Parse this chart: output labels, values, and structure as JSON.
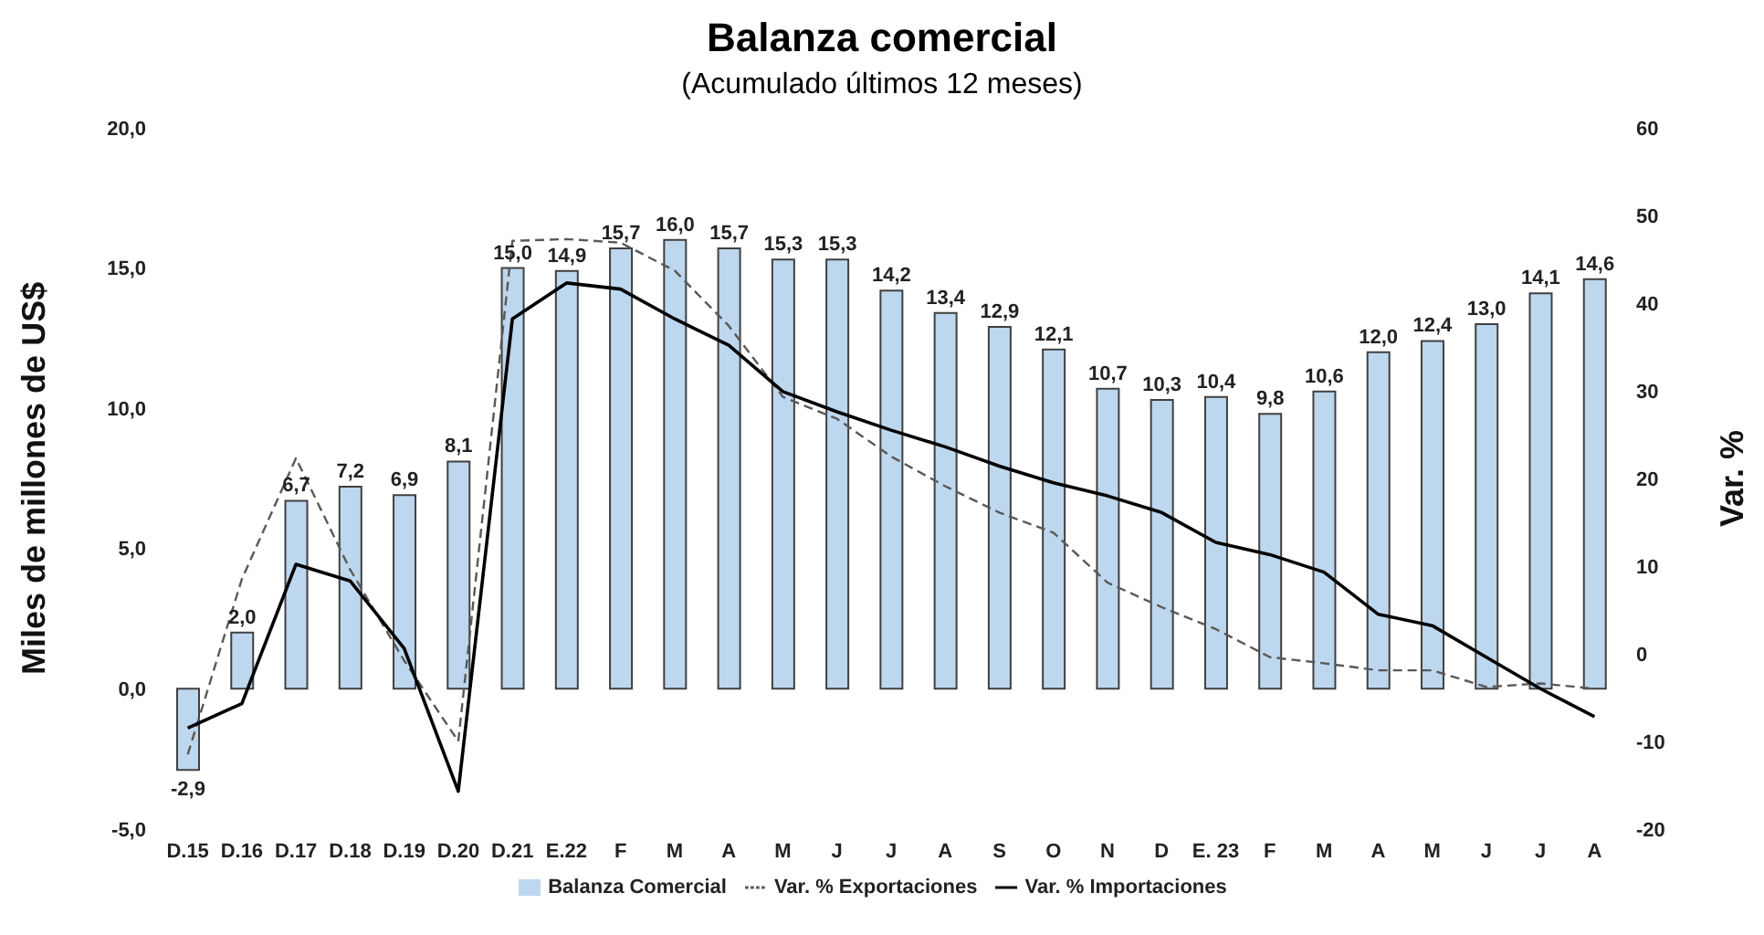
{
  "chart_data": {
    "type": "bar",
    "title": "Balanza comercial",
    "subtitle": "(Acumulado últimos 12 meses)",
    "ylabel": "Miles de millones de US$",
    "y2label": "Var. %",
    "categories": [
      "D.15",
      "D.16",
      "D.17",
      "D.18",
      "D.19",
      "D.20",
      "D.21",
      "E.22",
      "F",
      "M",
      "A",
      "M",
      "J",
      "J",
      "A",
      "S",
      "O",
      "N",
      "D",
      "E. 23",
      "F",
      "M",
      "A",
      "M",
      "J",
      "J",
      "A"
    ],
    "series": [
      {
        "name": "Balanza Comercial",
        "color": "#bdd7ee",
        "values": [
          -2.9,
          2.0,
          6.7,
          7.2,
          6.9,
          8.1,
          15.0,
          14.9,
          15.7,
          16.0,
          15.7,
          15.3,
          15.3,
          14.2,
          13.4,
          12.9,
          12.1,
          10.7,
          10.3,
          10.4,
          9.8,
          10.6,
          12.0,
          12.4,
          13.0,
          14.1,
          14.6
        ],
        "value_labels": [
          "-2,9",
          "2,0",
          "6,7",
          "7,2",
          "6,9",
          "8,1",
          "15,0",
          "14,9",
          "15,7",
          "16,0",
          "15,7",
          "15,3",
          "15,3",
          "14,2",
          "13,4",
          "12,9",
          "12,1",
          "10,7",
          "10,3",
          "10,4",
          "9,8",
          "10,6",
          "12,0",
          "12,4",
          "13,0",
          "14,1",
          "14,6"
        ]
      },
      {
        "name": "Var. % Exportaciones",
        "type": "line",
        "axis": "y2",
        "color": "#595959",
        "line_style": "dashed",
        "values": [
          -11.5,
          8.5,
          22.3,
          9.6,
          -0.8,
          -10,
          47.1,
          47.3,
          46.9,
          43.7,
          37.4,
          29.3,
          26.8,
          22.5,
          19.1,
          16.1,
          13.8,
          8.1,
          5.3,
          2.8,
          -0.4,
          -1.1,
          -1.9,
          -1.9,
          -3.8,
          -3.4,
          -4.0
        ]
      },
      {
        "name": "Var. % Importaciones",
        "type": "line",
        "axis": "y2",
        "color": "#000000",
        "line_style": "solid",
        "values": [
          -8.5,
          -5.7,
          10.2,
          8.3,
          0.6,
          -15.7,
          38.2,
          42.3,
          41.6,
          38.2,
          35.2,
          29.9,
          27.6,
          25.5,
          23.6,
          21.4,
          19.5,
          18.0,
          16.1,
          12.7,
          11.3,
          9.3,
          4.5,
          3.2,
          -0.4,
          -4.0,
          -7.2
        ]
      }
    ],
    "ylim": [
      -5,
      20
    ],
    "yticks": [
      {
        "value": -5,
        "label": "-5,0"
      },
      {
        "value": 0,
        "label": "0,0"
      },
      {
        "value": 5,
        "label": "5,0"
      },
      {
        "value": 10,
        "label": "10,0"
      },
      {
        "value": 15,
        "label": "15,0"
      },
      {
        "value": 20,
        "label": "20,0"
      }
    ],
    "y2lim": [
      -20,
      60
    ],
    "y2ticks": [
      -20,
      -10,
      0,
      10,
      20,
      30,
      40,
      50,
      60
    ],
    "marker": "none",
    "grid": false,
    "legend": "bottom"
  }
}
